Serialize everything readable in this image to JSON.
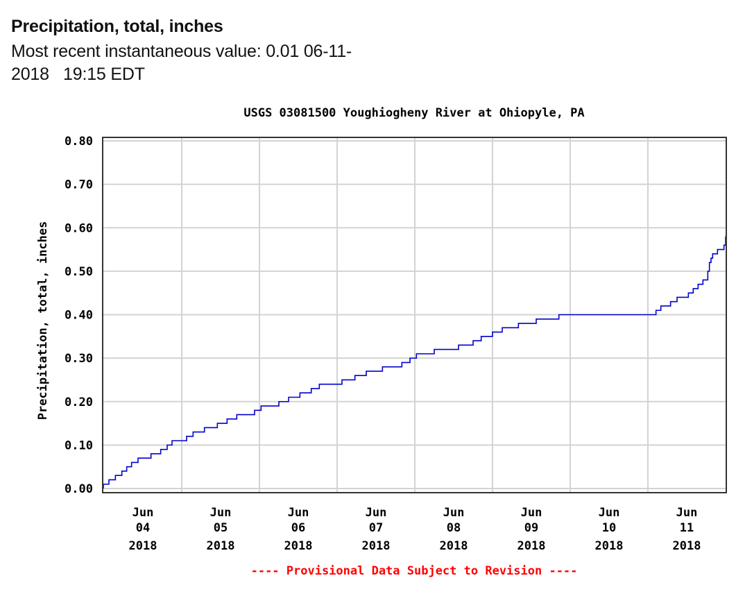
{
  "header": {
    "title": "Precipitation, total, inches",
    "subtitle_line1": "Most recent instantaneous value: 0.01 06-11-",
    "subtitle_line2": "2018   19:15 EDT"
  },
  "chart_data": {
    "type": "line",
    "title": "USGS 03081500 Youghiogheny River at Ohiopyle, PA",
    "xlabel": "",
    "ylabel": "Precipitation, total, inches",
    "ylim": [
      0,
      0.8
    ],
    "yticks": [
      "0.00",
      "0.10",
      "0.20",
      "0.30",
      "0.40",
      "0.50",
      "0.60",
      "0.70",
      "0.80"
    ],
    "ytick_values": [
      0,
      0.1,
      0.2,
      0.3,
      0.4,
      0.5,
      0.6,
      0.7,
      0.8
    ],
    "xlim_hours_from_jun04": [
      -1,
      191
    ],
    "xticks": [
      {
        "month": "Jun",
        "day": "04",
        "year": "2018"
      },
      {
        "month": "Jun",
        "day": "05",
        "year": "2018"
      },
      {
        "month": "Jun",
        "day": "06",
        "year": "2018"
      },
      {
        "month": "Jun",
        "day": "07",
        "year": "2018"
      },
      {
        "month": "Jun",
        "day": "08",
        "year": "2018"
      },
      {
        "month": "Jun",
        "day": "09",
        "year": "2018"
      },
      {
        "month": "Jun",
        "day": "10",
        "year": "2018"
      },
      {
        "month": "Jun",
        "day": "11",
        "year": "2018"
      }
    ],
    "grid": true,
    "line_color": "#0000cc",
    "footer_note": "---- Provisional Data Subject to Revision ----",
    "footer_color": "#ff0000",
    "series": [
      {
        "name": "Precipitation, total, inches",
        "step": true,
        "points_hours_value": [
          [
            -1,
            0.0
          ],
          [
            -0.5,
            0.01
          ],
          [
            1.5,
            0.02
          ],
          [
            3.5,
            0.03
          ],
          [
            5.5,
            0.04
          ],
          [
            7,
            0.05
          ],
          [
            8.5,
            0.06
          ],
          [
            10.5,
            0.07
          ],
          [
            14.5,
            0.08
          ],
          [
            17.5,
            0.09
          ],
          [
            19.5,
            0.1
          ],
          [
            21,
            0.11
          ],
          [
            25.5,
            0.12
          ],
          [
            27.5,
            0.13
          ],
          [
            31,
            0.14
          ],
          [
            35,
            0.15
          ],
          [
            38,
            0.16
          ],
          [
            41,
            0.17
          ],
          [
            46.5,
            0.18
          ],
          [
            48.5,
            0.19
          ],
          [
            54,
            0.2
          ],
          [
            57,
            0.21
          ],
          [
            60.5,
            0.22
          ],
          [
            64,
            0.23
          ],
          [
            66.5,
            0.24
          ],
          [
            73.5,
            0.25
          ],
          [
            77.5,
            0.26
          ],
          [
            81,
            0.27
          ],
          [
            86,
            0.28
          ],
          [
            92,
            0.29
          ],
          [
            94.5,
            0.3
          ],
          [
            96.5,
            0.31
          ],
          [
            102,
            0.32
          ],
          [
            109.5,
            0.33
          ],
          [
            114,
            0.34
          ],
          [
            116.5,
            0.35
          ],
          [
            120,
            0.36
          ],
          [
            123,
            0.37
          ],
          [
            128,
            0.38
          ],
          [
            133.5,
            0.39
          ],
          [
            140.5,
            0.4
          ],
          [
            170.5,
            0.41
          ],
          [
            172,
            0.42
          ],
          [
            175,
            0.43
          ],
          [
            177,
            0.44
          ],
          [
            180.5,
            0.45
          ],
          [
            182,
            0.46
          ],
          [
            183.5,
            0.47
          ],
          [
            185,
            0.48
          ],
          [
            186.5,
            0.5
          ],
          [
            187,
            0.52
          ],
          [
            187.5,
            0.53
          ],
          [
            188,
            0.54
          ],
          [
            189.5,
            0.55
          ],
          [
            191.5,
            0.56
          ],
          [
            194.5,
            0.57
          ],
          [
            199.5,
            0.58
          ]
        ]
      }
    ]
  }
}
